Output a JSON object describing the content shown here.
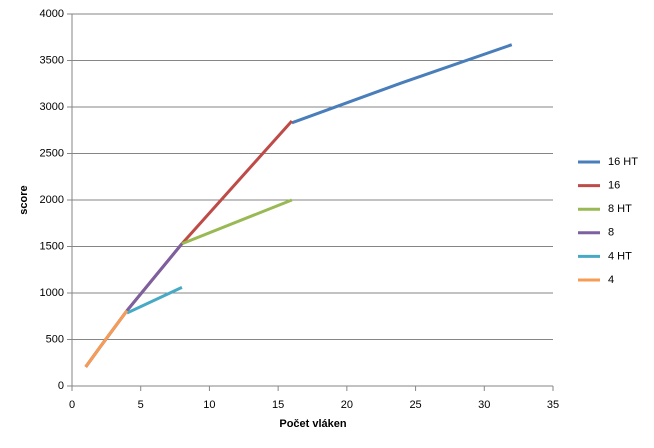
{
  "chart_data": {
    "type": "line",
    "x_label": "Počet vláken",
    "y_label": "score",
    "x": [
      1,
      2,
      4,
      8,
      16,
      24,
      32
    ],
    "series": [
      {
        "name": "16 HT",
        "color": "#4a7ebb",
        "values": [
          null,
          null,
          null,
          null,
          2830,
          3260,
          3670
        ]
      },
      {
        "name": "16",
        "color": "#be4b48",
        "values": [
          205,
          410,
          810,
          1530,
          2850,
          null,
          null
        ]
      },
      {
        "name": "8 HT",
        "color": "#98b954",
        "values": [
          null,
          null,
          null,
          1530,
          2000,
          null,
          null
        ]
      },
      {
        "name": "8",
        "color": "#7d60a0",
        "values": [
          205,
          410,
          810,
          1530,
          null,
          null,
          null
        ]
      },
      {
        "name": "4 HT",
        "color": "#46aac5",
        "values": [
          null,
          null,
          785,
          1060,
          null,
          null,
          null
        ]
      },
      {
        "name": "4",
        "color": "#f59d56",
        "values": [
          205,
          410,
          810,
          null,
          null,
          null,
          null
        ]
      }
    ],
    "xlim": [
      0,
      35
    ],
    "xticks": [
      0,
      5,
      10,
      15,
      20,
      25,
      30,
      35
    ],
    "ylim": [
      0,
      4000
    ],
    "yticks": [
      0,
      500,
      1000,
      1500,
      2000,
      2500,
      3000,
      3500,
      4000
    ],
    "grid": true,
    "legend": "right"
  }
}
